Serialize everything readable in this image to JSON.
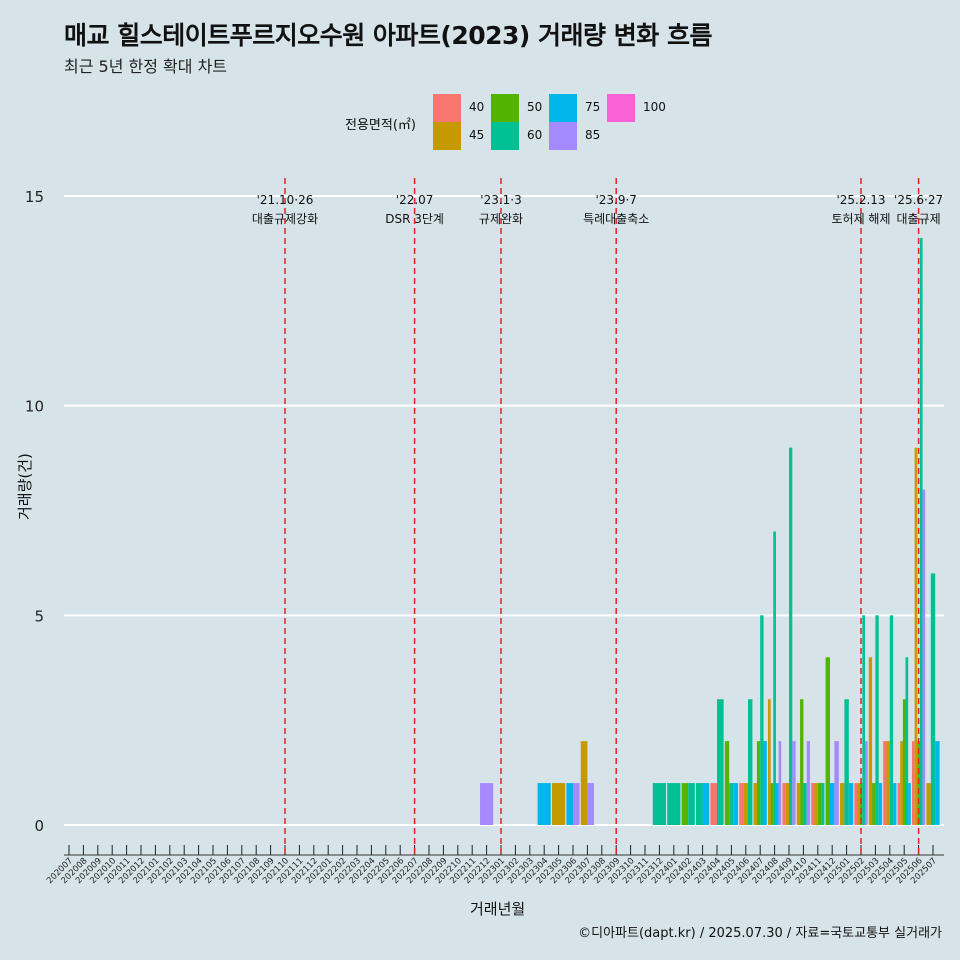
{
  "header": {
    "title": "매교 힐스테이트푸르지오수원 아파트(2023) 거래량 변화 흐름",
    "subtitle": "최근 5년 한정 확대 차트"
  },
  "footer": {
    "caption": "©디아파트(dapt.kr) / 2025.07.30 / 자료=국토교통부 실거래가"
  },
  "legend": {
    "title": "전용면적(㎡)",
    "items": [
      {
        "label": "40",
        "color": "#F8766D"
      },
      {
        "label": "45",
        "color": "#C49A00"
      },
      {
        "label": "50",
        "color": "#53B400"
      },
      {
        "label": "60",
        "color": "#00C094"
      },
      {
        "label": "75",
        "color": "#00B6EB"
      },
      {
        "label": "85",
        "color": "#A58AFF"
      },
      {
        "label": "100",
        "color": "#FB61D7"
      }
    ]
  },
  "chart_data": {
    "type": "bar",
    "xlabel": "거래년월",
    "ylabel": "거래량(건)",
    "ylim": [
      0,
      15
    ],
    "yticks": [
      0,
      5,
      10,
      15
    ],
    "grid": true,
    "legend_position": "top",
    "categories": [
      "202007",
      "202008",
      "202009",
      "202010",
      "202011",
      "202012",
      "202101",
      "202102",
      "202103",
      "202104",
      "202105",
      "202106",
      "202107",
      "202108",
      "202109",
      "202110",
      "202111",
      "202112",
      "202201",
      "202202",
      "202203",
      "202204",
      "202205",
      "202206",
      "202207",
      "202208",
      "202209",
      "202210",
      "202211",
      "202212",
      "202301",
      "202302",
      "202303",
      "202304",
      "202305",
      "202306",
      "202307",
      "202308",
      "202309",
      "202310",
      "202311",
      "202312",
      "202401",
      "202402",
      "202403",
      "202404",
      "202405",
      "202406",
      "202407",
      "202408",
      "202409",
      "202410",
      "202411",
      "202412",
      "202501",
      "202502",
      "202503",
      "202504",
      "202505",
      "202506",
      "202507"
    ],
    "series": [
      {
        "name": "40",
        "values": {
          "202404": 1,
          "202406": 1,
          "202409": 1,
          "202411": 1,
          "202502": 1,
          "202504": 2,
          "202505": 1,
          "202506": 2
        }
      },
      {
        "name": "45",
        "values": {
          "202305": 1,
          "202307": 2,
          "202406": 1,
          "202407": 1,
          "202408": 3,
          "202409": 1,
          "202410": 1,
          "202411": 1,
          "202501": 1,
          "202502": 1,
          "202503": 4,
          "202504": 2,
          "202505": 2,
          "202506": 9,
          "202507": 1
        }
      },
      {
        "name": "50",
        "values": {
          "202402": 1,
          "202405": 2,
          "202407": 2,
          "202408": 1,
          "202410": 3,
          "202411": 1,
          "202412": 4,
          "202502": 1,
          "202503": 1,
          "202505": 3,
          "202506": 2
        }
      },
      {
        "name": "60",
        "values": {
          "202312": 1,
          "202401": 1,
          "202402": 1,
          "202403": 1,
          "202404": 3,
          "202405": 1,
          "202406": 3,
          "202407": 5,
          "202408": 7,
          "202409": 9,
          "202410": 1,
          "202411": 1,
          "202501": 3,
          "202502": 5,
          "202503": 5,
          "202504": 5,
          "202505": 4,
          "202506": 14,
          "202507": 6
        }
      },
      {
        "name": "75",
        "values": {
          "202304": 1,
          "202306": 1,
          "202403": 1,
          "202405": 1,
          "202407": 2,
          "202408": 1,
          "202412": 1,
          "202501": 1,
          "202503": 1,
          "202504": 1,
          "202505": 1,
          "202507": 2
        }
      },
      {
        "name": "85",
        "values": {
          "202212": 1,
          "202306": 1,
          "202307": 1,
          "202408": 2,
          "202409": 2,
          "202410": 2,
          "202412": 2,
          "202502": 2,
          "202506": 8
        }
      },
      {
        "name": "100",
        "values": {}
      }
    ],
    "annotations": [
      {
        "x": "202110",
        "date": "'21.10·26",
        "label": "대출규제강화"
      },
      {
        "x": "202207",
        "date": "'22.07",
        "label": "DSR 3단계"
      },
      {
        "x": "202301",
        "date": "'23.1·3",
        "label": "규제완화"
      },
      {
        "x": "202309",
        "date": "'23.9·7",
        "label": "특례대출축소"
      },
      {
        "x": "202502",
        "date": "'25.2.13",
        "label": "토허제 해제"
      },
      {
        "x": "202506",
        "date": "'25.6·27",
        "label": "대출규제"
      }
    ]
  }
}
